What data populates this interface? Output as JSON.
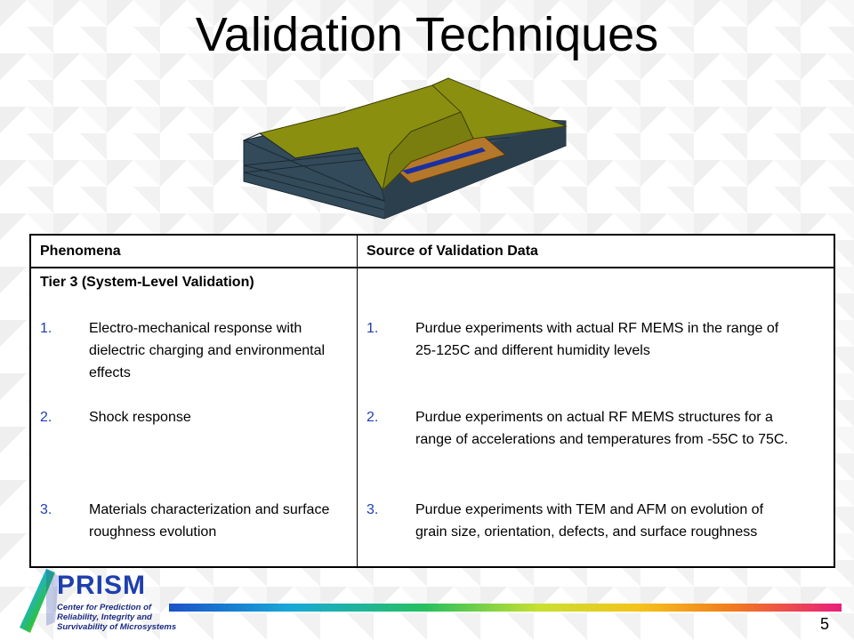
{
  "slide": {
    "title": "Validation Techniques",
    "page_number": "5"
  },
  "table": {
    "headers": [
      "Phenomena",
      "Source of Validation Data"
    ],
    "tier_label": "Tier 3 (System-Level Validation)",
    "left_items": [
      {
        "num": "1.",
        "text": "Electro-mechanical response with  dielectric charging and environmental effects"
      },
      {
        "num": "2.",
        "text": "Shock response"
      },
      {
        "num": "3.",
        "text": "Materials characterization and surface roughness evolution"
      }
    ],
    "right_items": [
      {
        "num": "1.",
        "text": "Purdue experiments with actual RF MEMS  in the range of 25-125C and different humidity levels"
      },
      {
        "num": "2.",
        "text": "Purdue experiments on actual RF MEMS structures  for a range of accelerations and temperatures from -55C to 75C."
      },
      {
        "num": "3.",
        "text": "Purdue experiments with TEM and AFM on evolution of grain size, orientation, defects, and surface roughness"
      }
    ]
  },
  "logo": {
    "name": "PRISM",
    "lines": [
      "Center for Prediction of",
      "Reliability, Integrity and",
      "Survivability of Microsystems"
    ]
  },
  "colors": {
    "number_blue": "#1f3fae",
    "logo_blue": "#1f3fae"
  }
}
